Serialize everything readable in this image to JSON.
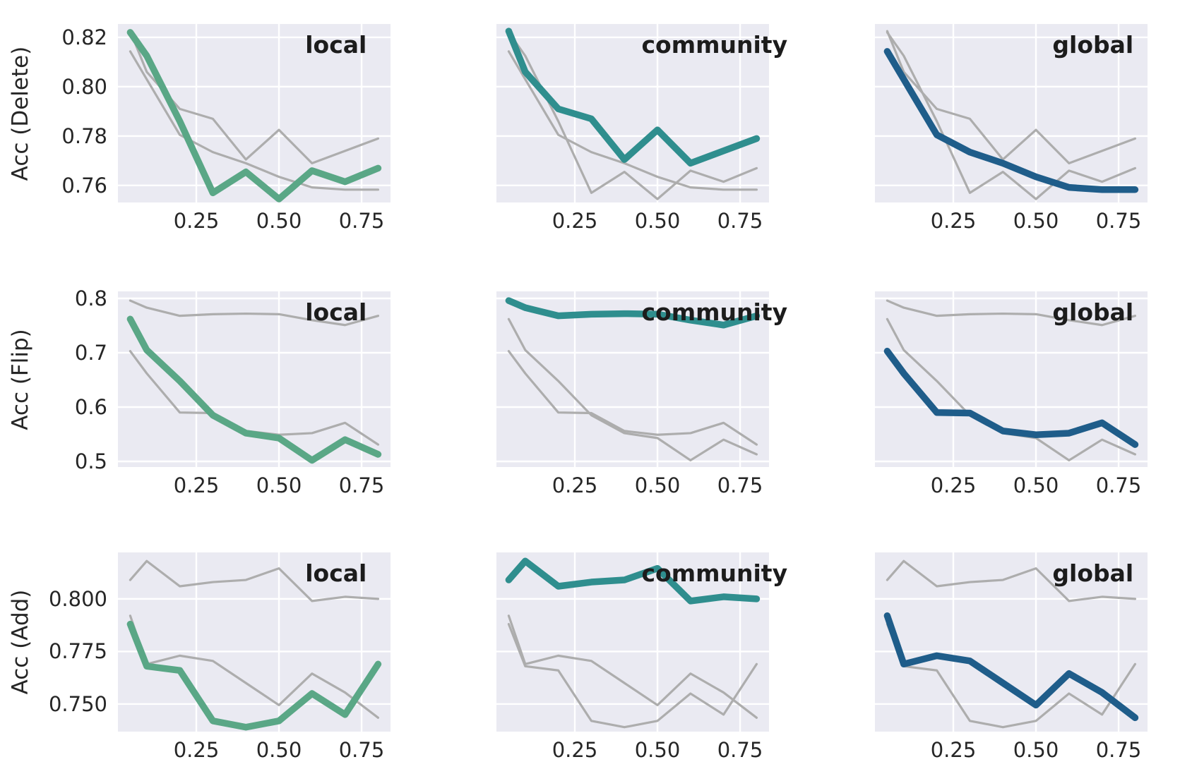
{
  "figure": {
    "background": "#ffffff",
    "description": "3x3 grid of seaborn-style line charts; rows are accuracy metrics (Delete, Flip, Add), columns highlight one series (local, community, global) with the other two drawn in gray"
  },
  "style": {
    "panel_background": "#eaeaf2",
    "gridline_color": "#ffffff",
    "muted_line_color": "#adadad",
    "tick_text_color": "#262626",
    "title_text_color": "#1c1c1c",
    "series_colors": {
      "local": "#5aa786",
      "community": "#2f8e8e",
      "global": "#1f5d8a"
    }
  },
  "chart_data": {
    "type": "line",
    "layout": "3x3 grid; rows = metrics, columns = highlighted series; non-highlighted series shown in gray in each panel",
    "grid": true,
    "legend": "none (bold panel titles label the highlighted series)",
    "x": [
      0.05,
      0.1,
      0.2,
      0.3,
      0.4,
      0.5,
      0.6,
      0.7,
      0.8
    ],
    "x_lim": [
      0.0128,
      0.8375
    ],
    "x_ticks": [
      0.25,
      0.5,
      0.75
    ],
    "x_tick_labels": [
      "0.25",
      "0.50",
      "0.75"
    ],
    "columns": [
      {
        "title": "local",
        "highlight": "local"
      },
      {
        "title": "community",
        "highlight": "community"
      },
      {
        "title": "global",
        "highlight": "global"
      }
    ],
    "rows": [
      {
        "y_label": "Acc (Delete)",
        "y_lim": [
          0.7531,
          0.8254
        ],
        "y_ticks": [
          0.76,
          0.78,
          0.8,
          0.82
        ],
        "y_tick_labels": [
          "0.76",
          "0.78",
          "0.80",
          "0.82"
        ],
        "series": [
          {
            "name": "local",
            "values": [
              0.822,
              0.8125,
              0.786,
              0.757,
              0.7655,
              0.7545,
              0.766,
              0.7615,
              0.767
            ]
          },
          {
            "name": "community",
            "values": [
              0.8225,
              0.806,
              0.791,
              0.787,
              0.7705,
              0.7825,
              0.769,
              0.774,
              0.779
            ]
          },
          {
            "name": "global",
            "values": [
              0.8143,
              0.803,
              0.7805,
              0.7735,
              0.769,
              0.7635,
              0.7592,
              0.7583,
              0.7583
            ]
          }
        ]
      },
      {
        "y_label": "Acc (Flip)",
        "y_lim": [
          0.4896,
          0.813
        ],
        "y_ticks": [
          0.5,
          0.6,
          0.7,
          0.8
        ],
        "y_tick_labels": [
          "0.5",
          "0.6",
          "0.7",
          "0.8"
        ],
        "series": [
          {
            "name": "local",
            "values": [
              0.762,
              0.705,
              0.648,
              0.585,
              0.552,
              0.543,
              0.502,
              0.54,
              0.513
            ]
          },
          {
            "name": "community",
            "values": [
              0.796,
              0.783,
              0.768,
              0.771,
              0.772,
              0.771,
              0.76,
              0.751,
              0.768
            ]
          },
          {
            "name": "global",
            "values": [
              0.703,
              0.662,
              0.59,
              0.589,
              0.556,
              0.549,
              0.552,
              0.571,
              0.531
            ]
          }
        ]
      },
      {
        "y_label": "Acc (Add)",
        "y_lim": [
          0.7369,
          0.8221
        ],
        "y_ticks": [
          0.75,
          0.775,
          0.8
        ],
        "y_tick_labels": [
          "0.750",
          "0.775",
          "0.800"
        ],
        "series": [
          {
            "name": "local",
            "values": [
              0.788,
              0.768,
              0.766,
              0.742,
              0.739,
              0.742,
              0.755,
              0.745,
              0.769
            ]
          },
          {
            "name": "community",
            "values": [
              0.809,
              0.818,
              0.806,
              0.808,
              0.809,
              0.8145,
              0.799,
              0.801,
              0.8
            ]
          },
          {
            "name": "global",
            "values": [
              0.792,
              0.769,
              0.773,
              0.7705,
              0.76,
              0.7495,
              0.7645,
              0.7555,
              0.7435
            ]
          }
        ]
      }
    ]
  }
}
